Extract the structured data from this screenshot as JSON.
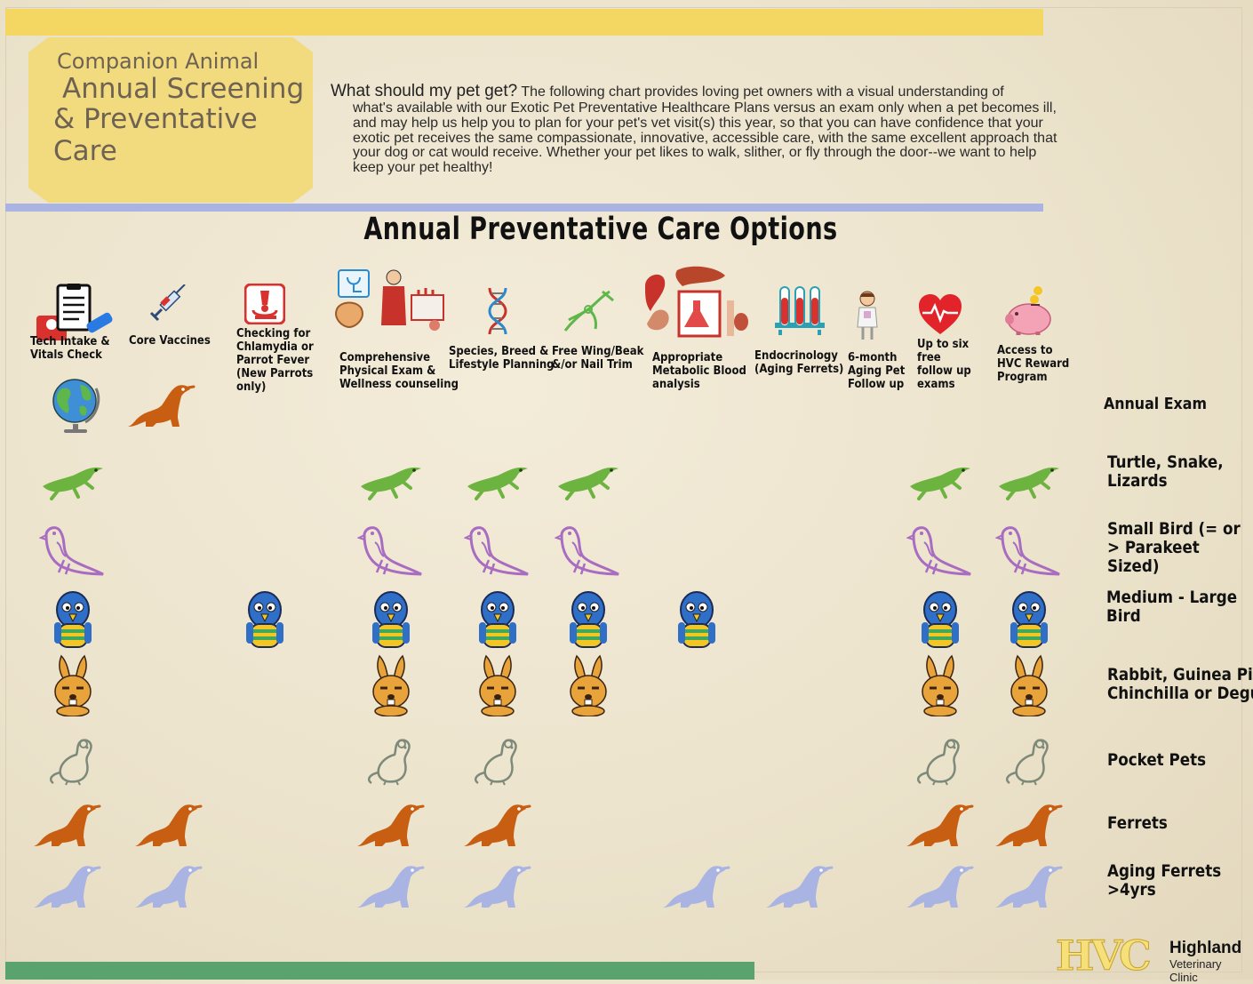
{
  "header": {
    "title_line1": "Companion Animal",
    "title_line2": "Annual Screening",
    "title_line3": "& Preventative Care",
    "intro_lead": "What should my pet get?",
    "intro_first_line": " The following chart provides loving pet owners with a visual understanding of",
    "intro_rest": "what's available with our Exotic Pet Preventative Healthcare Plans versus an exam only when a pet becomes ill, and may help us help you to plan for your pet's vet visit(s) this year, so that you can have confidence that your exotic pet receives the same compassionate, innovative, accessible care, with the same excellent approach that your dog or cat would receive.  Whether your pet likes to walk, slither, or fly through the door--we want to help keep your pet healthy!"
  },
  "section_title": "Annual Preventative Care Options",
  "columns": [
    {
      "label": "Tech Intake &\nVitals Check",
      "icon": "clipboard-scale-icon"
    },
    {
      "label": "Core Vaccines",
      "icon": "syringe-icon"
    },
    {
      "label": "Checking for\nChlamydia or\nParrot Fever\n(New Parrots\nonly)",
      "icon": "microscope-icon"
    },
    {
      "label": "Comprehensive\nPhysical Exam &\nWellness counseling",
      "icon": "physical-exam-icon"
    },
    {
      "label": "Species, Breed &\nLifestyle Planning",
      "icon": "dna-icon"
    },
    {
      "label": "Free Wing/Beak\n&/or Nail Trim",
      "icon": "clippers-icon"
    },
    {
      "label": "Appropriate\nMetabolic Blood\nanalysis",
      "icon": "organs-flask-icon"
    },
    {
      "label": "Endocrinology\n(Aging Ferrets)",
      "icon": "test-tubes-icon"
    },
    {
      "label": "6-month\nAging Pet\nFollow up",
      "icon": "nurse-icon"
    },
    {
      "label": "Up to six\nfree\nfollow up\nexams",
      "icon": "heart-pulse-icon"
    },
    {
      "label": "Access to\nHVC Reward\nProgram",
      "icon": "piggy-bank-icon"
    }
  ],
  "annual_exam": {
    "label": "Annual Exam",
    "icons": [
      "globe-icon",
      "ferret-icon"
    ]
  },
  "rows": [
    {
      "label": "Turtle, Snake,\nLizards",
      "animal": "lizard",
      "cols": [
        0,
        3,
        4,
        5,
        9,
        10
      ]
    },
    {
      "label": "Small Bird (= or\n> Parakeet\nSized)",
      "animal": "small-bird",
      "cols": [
        0,
        3,
        4,
        5,
        9,
        10
      ]
    },
    {
      "label": "Medium - Large\nBird",
      "animal": "parrot",
      "cols": [
        0,
        2,
        3,
        4,
        5,
        6,
        9,
        10
      ]
    },
    {
      "label": "Rabbit, Guinea Pig,\nChinchilla or Degu",
      "animal": "rabbit",
      "cols": [
        0,
        3,
        4,
        5,
        9,
        10
      ]
    },
    {
      "label": "Pocket Pets",
      "animal": "rat",
      "cols": [
        0,
        3,
        4,
        9,
        10
      ]
    },
    {
      "label": "Ferrets",
      "animal": "ferret",
      "cols": [
        0,
        1,
        3,
        4,
        9,
        10
      ]
    },
    {
      "label": "Aging Ferrets\n>4yrs",
      "animal": "aging-ferret",
      "cols": [
        0,
        1,
        3,
        4,
        6,
        7,
        9,
        10
      ]
    }
  ],
  "colors": {
    "top_bar": "#f4d663",
    "mid_bar": "#a9b4e3",
    "bottom_bar": "#5aa36e",
    "lizard": "#6db33f",
    "small_bird": "#a86cc1",
    "parrot_blue": "#2f6fc7",
    "rabbit": "#e8a43a",
    "rat": "#7d8a7a",
    "ferret": "#c85e12",
    "aging_ferret": "#a9b4e3"
  },
  "logo": {
    "mark": "HVC",
    "name": "Highland",
    "sub": "Veterinary Clinic"
  }
}
